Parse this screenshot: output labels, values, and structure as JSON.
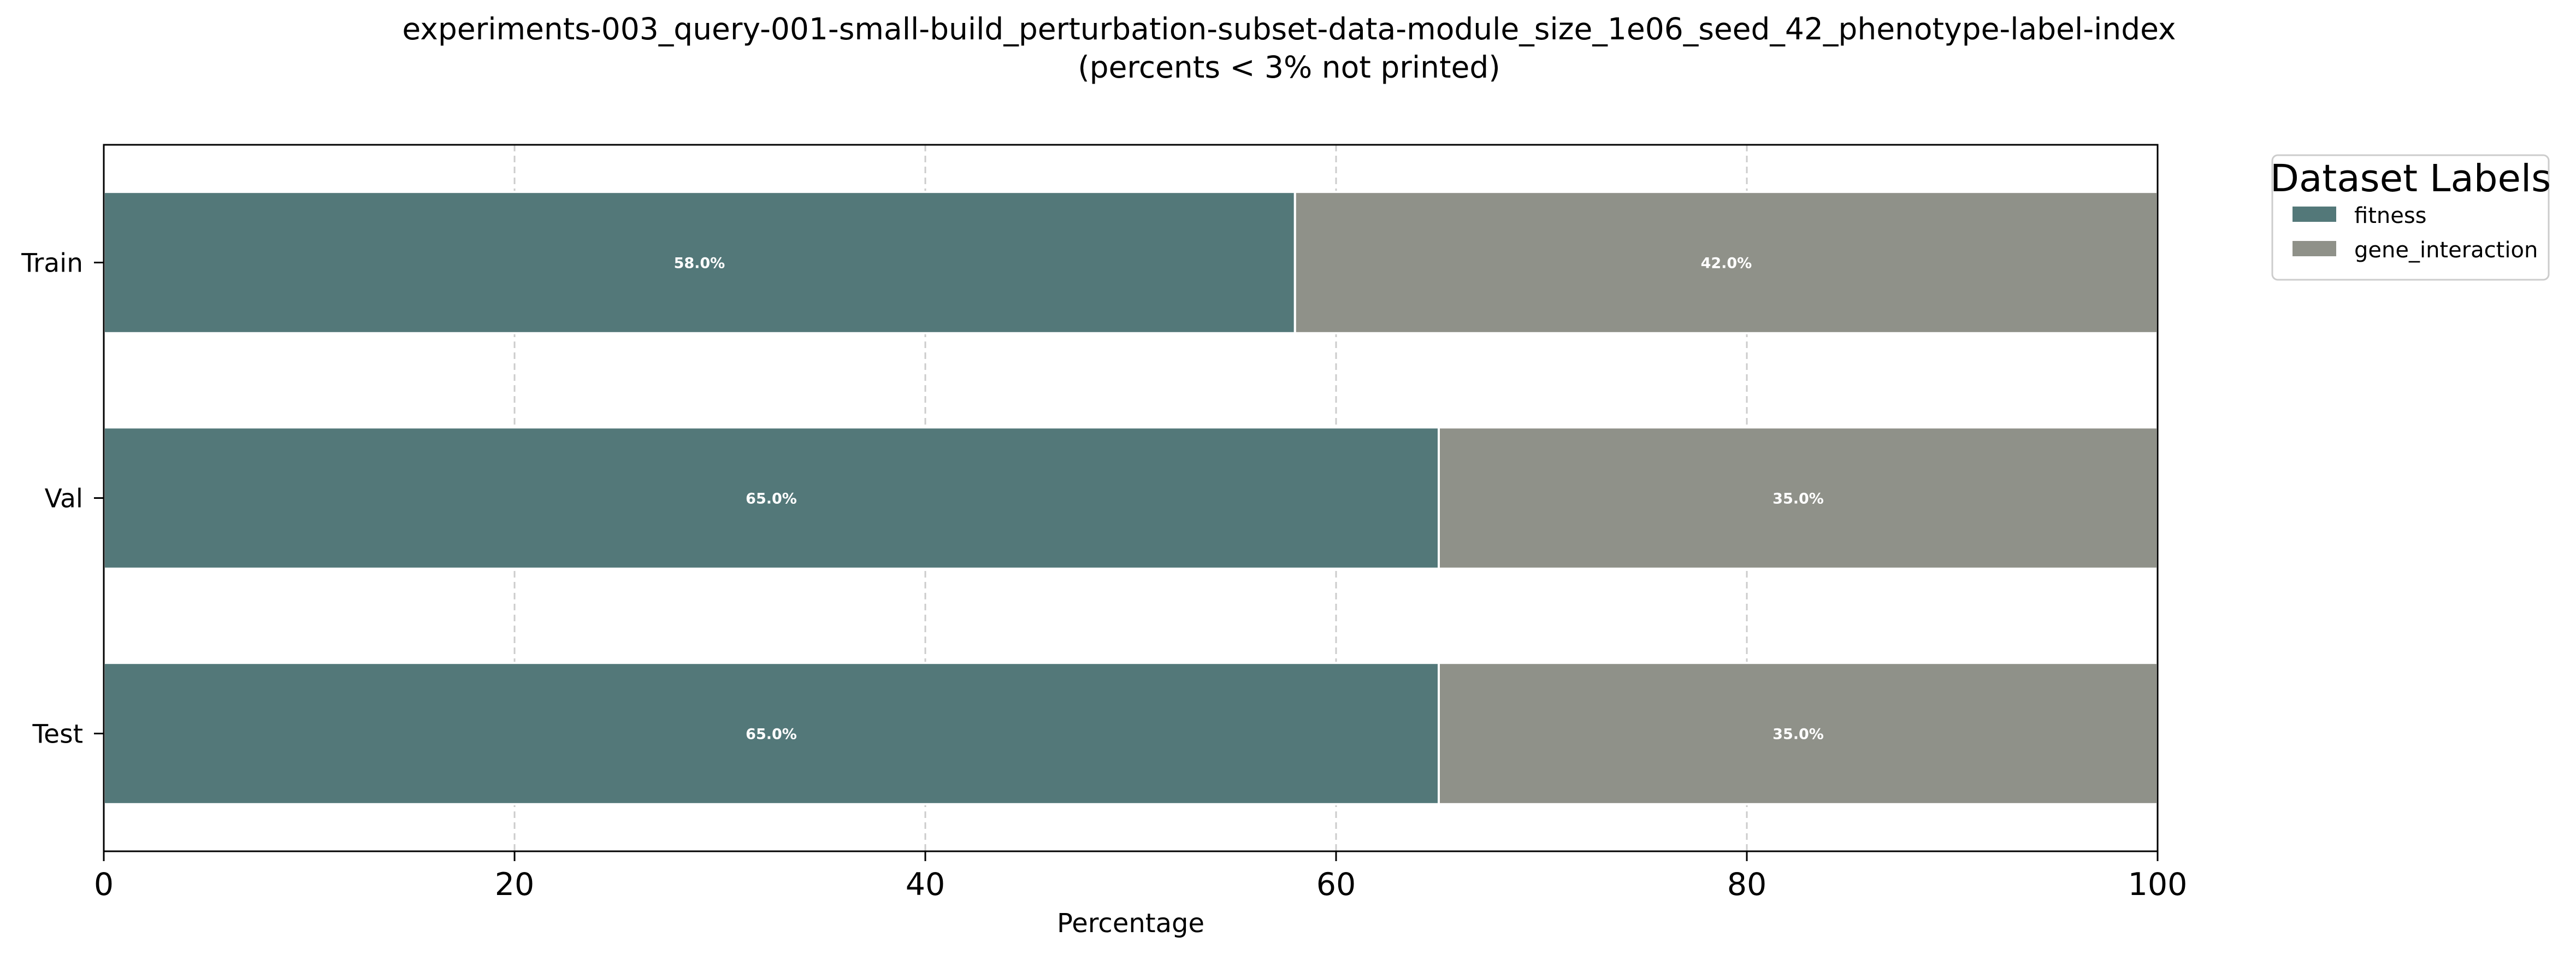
{
  "chart_data": {
    "type": "bar",
    "orientation": "horizontal",
    "stacked": true,
    "title": "experiments-003_query-001-small-build_perturbation-subset-data-module_size_1e06_seed_42_phenotype-label-index",
    "subtitle": "(percents < 3% not printed)",
    "xlabel": "Percentage",
    "ylabel": "",
    "xlim": [
      0,
      100
    ],
    "xticks": [
      0,
      20,
      40,
      60,
      80,
      100
    ],
    "grid": "x-dashed",
    "categories": [
      "Train",
      "Val",
      "Test"
    ],
    "series": [
      {
        "name": "fitness",
        "color": "#537879",
        "values": [
          58.0,
          65.0,
          65.0
        ],
        "labels": [
          "58.0%",
          "65.0%",
          "65.0%"
        ]
      },
      {
        "name": "gene_interaction",
        "color": "#8f9189",
        "values": [
          42.0,
          35.0,
          35.0
        ],
        "labels": [
          "42.0%",
          "35.0%",
          "35.0%"
        ]
      }
    ],
    "legend": {
      "title": "Dataset Labels",
      "placement": "outside-top-right"
    }
  }
}
